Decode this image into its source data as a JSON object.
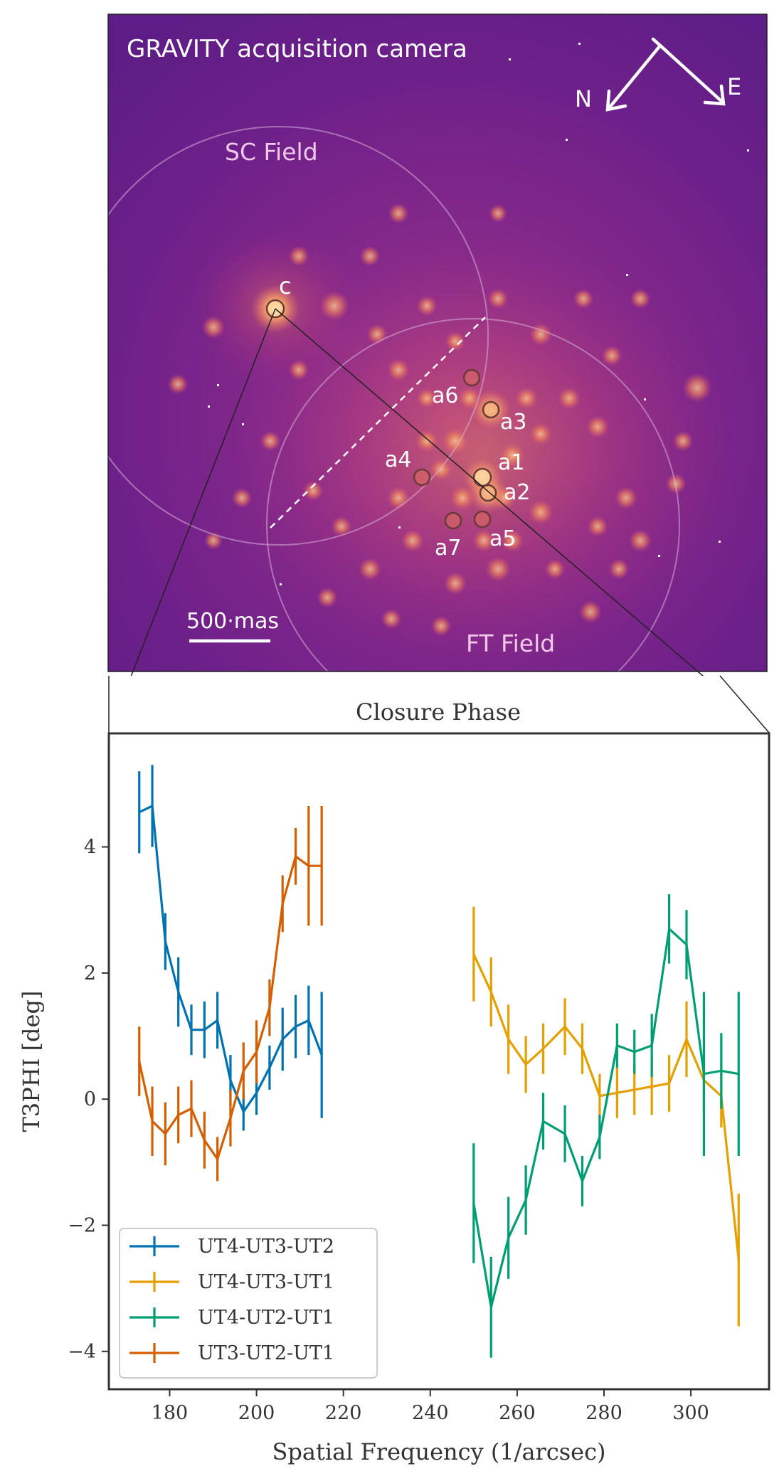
{
  "camera": {
    "title": "GRAVITY acquisition camera",
    "compass": {
      "north": "N",
      "east": "E"
    },
    "fields": {
      "sc": "SC Field",
      "ft": "FT Field"
    },
    "scalebar": "500·mas",
    "sources": [
      {
        "label": "c"
      },
      {
        "label": "a1"
      },
      {
        "label": "a2"
      },
      {
        "label": "a3"
      },
      {
        "label": "a4"
      },
      {
        "label": "a5"
      },
      {
        "label": "a6"
      },
      {
        "label": "a7"
      }
    ]
  },
  "chart_data": {
    "type": "line",
    "title": "Closure Phase",
    "xlabel": "Spatial Frequency (1/arcsec)",
    "ylabel": "T3PHI [deg]",
    "xlim": [
      166,
      318
    ],
    "ylim": [
      -4.6,
      5.8
    ],
    "xticks": [
      180,
      200,
      220,
      240,
      260,
      280,
      300
    ],
    "yticks": [
      -4,
      -2,
      0,
      2,
      4
    ],
    "xtick_labels": [
      "180",
      "200",
      "220",
      "240",
      "260",
      "280",
      "300"
    ],
    "ytick_labels": [
      "−4",
      "−2",
      "0",
      "2",
      "4"
    ],
    "legend_position": "lower-left",
    "series": [
      {
        "name": "UT4-UT3-UT2",
        "color": "#0072b2",
        "x": [
          173,
          176,
          179,
          182,
          185,
          188,
          191,
          194,
          197,
          200,
          203,
          206,
          209,
          212,
          215
        ],
        "y": [
          4.55,
          4.65,
          2.5,
          1.7,
          1.1,
          1.1,
          1.25,
          0.3,
          -0.2,
          0.1,
          0.5,
          0.95,
          1.15,
          1.25,
          0.7
        ],
        "err": [
          0.65,
          0.65,
          0.45,
          0.55,
          0.4,
          0.45,
          0.45,
          0.4,
          0.3,
          0.35,
          0.35,
          0.5,
          0.5,
          0.55,
          1.0
        ]
      },
      {
        "name": "UT4-UT3-UT1",
        "color": "#e69f00",
        "x": [
          250,
          254,
          258,
          262,
          266,
          271,
          275,
          279,
          283,
          287,
          291,
          295,
          299,
          303,
          307,
          311
        ],
        "y": [
          2.3,
          1.7,
          0.95,
          0.55,
          0.8,
          1.15,
          0.8,
          0.05,
          0.1,
          0.15,
          0.2,
          0.25,
          0.95,
          0.3,
          0.05,
          -2.55
        ],
        "err": [
          0.75,
          0.55,
          0.55,
          0.45,
          0.4,
          0.45,
          0.4,
          0.35,
          0.4,
          0.4,
          0.45,
          0.45,
          0.6,
          0.5,
          0.5,
          1.05
        ]
      },
      {
        "name": "UT4-UT2-UT1",
        "color": "#009e73",
        "x": [
          250,
          254,
          258,
          262,
          266,
          271,
          275,
          279,
          283,
          287,
          291,
          295,
          299,
          303,
          307,
          311
        ],
        "y": [
          -1.65,
          -3.3,
          -2.2,
          -1.6,
          -0.35,
          -0.55,
          -1.3,
          -0.6,
          0.85,
          0.75,
          0.85,
          2.7,
          2.45,
          0.4,
          0.45,
          0.4
        ],
        "err": [
          0.95,
          0.8,
          0.65,
          0.55,
          0.45,
          0.45,
          0.4,
          0.35,
          0.35,
          0.35,
          0.5,
          0.55,
          0.55,
          1.3,
          0.6,
          1.3
        ]
      },
      {
        "name": "UT3-UT2-UT1",
        "color": "#d55e00",
        "x": [
          173,
          176,
          179,
          182,
          185,
          188,
          191,
          194,
          197,
          200,
          203,
          206,
          209,
          212,
          215
        ],
        "y": [
          0.6,
          -0.35,
          -0.55,
          -0.25,
          -0.15,
          -0.65,
          -0.95,
          -0.3,
          0.45,
          0.75,
          1.45,
          3.1,
          3.85,
          3.7,
          3.7
        ],
        "err": [
          0.55,
          0.55,
          0.5,
          0.45,
          0.45,
          0.45,
          0.35,
          0.45,
          0.45,
          0.5,
          0.45,
          0.45,
          0.45,
          0.95,
          0.95
        ]
      }
    ]
  }
}
